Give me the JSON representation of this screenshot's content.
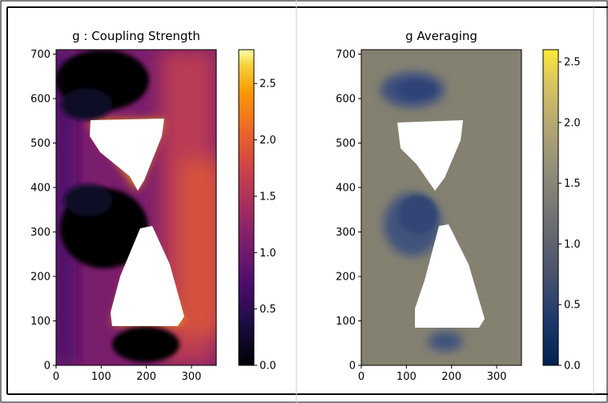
{
  "chart_data": [
    {
      "type": "heatmap",
      "title": "g : Coupling Strength",
      "xlabel": "",
      "ylabel": "",
      "xlim": [
        0,
        355
      ],
      "ylim": [
        0,
        710
      ],
      "xticks": [
        "0",
        "100",
        "200",
        "300"
      ],
      "yticks": [
        "0",
        "100",
        "200",
        "300",
        "400",
        "500",
        "600",
        "700"
      ],
      "colormap": "inferno",
      "colorbar": {
        "min": 0.0,
        "max": 2.8,
        "ticks": [
          "0.0",
          "0.5",
          "1.0",
          "1.5",
          "2.0",
          "2.5"
        ]
      },
      "masked_regions": "two white hourglass triangles (y 90-320 and 410-550)",
      "grid": false
    },
    {
      "type": "heatmap",
      "title": "g Averaging",
      "xlabel": "",
      "ylabel": "",
      "xlim": [
        0,
        355
      ],
      "ylim": [
        0,
        710
      ],
      "xticks": [
        "0",
        "100",
        "200",
        "300"
      ],
      "yticks": [
        "0",
        "100",
        "200",
        "300",
        "400",
        "500",
        "600",
        "700"
      ],
      "colormap": "cividis",
      "colorbar": {
        "min": 0.0,
        "max": 2.6,
        "ticks": [
          "0.0",
          "0.5",
          "1.0",
          "1.5",
          "2.0",
          "2.5"
        ]
      },
      "masked_regions": "two white hourglass triangles (y 90-320 and 410-550)",
      "grid": false
    }
  ],
  "colors": {
    "inferno_black": "#000004",
    "inferno_purple": "#56106e",
    "inferno_orange": "#f37819",
    "inferno_yellow": "#fcffa4",
    "cividis_navy": "#00224e",
    "cividis_gray": "#7c7b78",
    "cividis_yellow": "#fee838",
    "frame": "#000000",
    "divider": "#cfcfcf"
  }
}
